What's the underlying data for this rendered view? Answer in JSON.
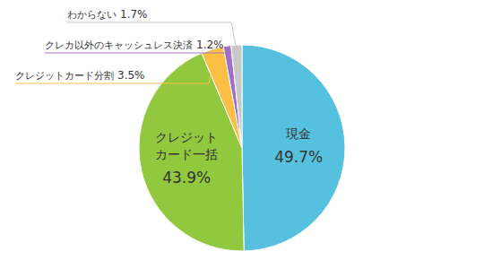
{
  "chart_data": {
    "type": "pie",
    "categories": [
      "現金",
      "クレジットカード一括",
      "クレジットカード分割",
      "クレカ以外のキャッシュレス決済",
      "わからない"
    ],
    "values": [
      49.7,
      43.9,
      3.5,
      1.2,
      1.7
    ],
    "value_labels": [
      "49.7%",
      "43.9%",
      "3.5%",
      "1.2%",
      "1.7%"
    ],
    "colors": [
      "#56c1de",
      "#92c83e",
      "#fbbf45",
      "#a070c8",
      "#c8c8c8"
    ],
    "data_labels": true
  }
}
